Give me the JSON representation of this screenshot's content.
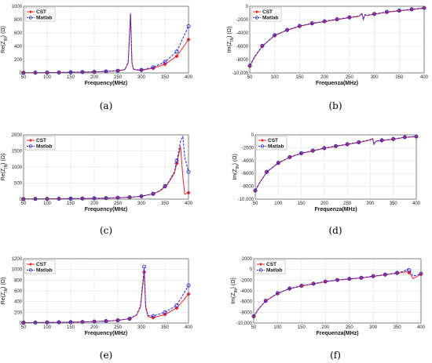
{
  "colors": {
    "cst": "#e8262a",
    "matlab": "#2b2bd8",
    "grid": "#dcdcdc",
    "axis": "#555555"
  },
  "chart_data": [
    {
      "id": "a",
      "type": "line",
      "panel_label": "(a)",
      "xlabel": "Frequency(MHz)",
      "ylabel": "Re(Z_IN) (Ω)",
      "xlim": [
        50,
        400
      ],
      "ylim": [
        0,
        1000
      ],
      "xticks": [
        50,
        100,
        150,
        200,
        250,
        300,
        350,
        400
      ],
      "xtick_labels": [
        "50",
        "100",
        "150",
        "200",
        "250",
        "300",
        "350",
        "400"
      ],
      "yticks": [
        0,
        200,
        400,
        600,
        800,
        1000
      ],
      "ytick_labels": [
        "0",
        "200",
        "400",
        "600",
        "800",
        "1000"
      ],
      "grid": true,
      "legend": "top-left",
      "series": [
        {
          "name": "CST",
          "style": "solid",
          "marker": "diamond",
          "x": [
            50,
            75,
            100,
            125,
            150,
            175,
            200,
            225,
            250,
            265,
            272,
            277,
            280,
            283,
            290,
            300,
            325,
            350,
            375,
            400
          ],
          "y": [
            3,
            4,
            5,
            7,
            9,
            12,
            16,
            22,
            32,
            50,
            150,
            900,
            150,
            55,
            45,
            40,
            70,
            130,
            250,
            500
          ],
          "marker_x": [
            50,
            75,
            100,
            125,
            150,
            175,
            200,
            225,
            250,
            300,
            325,
            350,
            375,
            400
          ]
        },
        {
          "name": "Matlab",
          "style": "dashed",
          "marker": "circle",
          "x": [
            50,
            75,
            100,
            125,
            150,
            175,
            200,
            225,
            250,
            265,
            272,
            277,
            280,
            283,
            290,
            300,
            325,
            350,
            375,
            400
          ],
          "y": [
            3,
            4,
            5,
            7,
            9,
            12,
            16,
            22,
            32,
            52,
            160,
            880,
            160,
            60,
            50,
            45,
            85,
            165,
            320,
            700
          ],
          "marker_x": [
            50,
            75,
            100,
            125,
            150,
            175,
            200,
            225,
            250,
            300,
            325,
            350,
            375,
            400
          ]
        }
      ]
    },
    {
      "id": "b",
      "type": "line",
      "panel_label": "(b)",
      "xlabel": "Frequenza(MHz)",
      "ylabel": "Im(Z_IN) (Ω)",
      "xlim": [
        50,
        400
      ],
      "ylim": [
        -10000,
        0
      ],
      "xticks": [
        50,
        100,
        150,
        200,
        250,
        300,
        350,
        400
      ],
      "xtick_labels": [
        "50",
        "100",
        "150",
        "200",
        "250",
        "300",
        "350",
        "400"
      ],
      "yticks": [
        -10000,
        -8000,
        -6000,
        -4000,
        -2000,
        0
      ],
      "ytick_labels": [
        "-10,000",
        "-8000",
        "-6000",
        "-4000",
        "-2000",
        "0"
      ],
      "grid": true,
      "legend": "top-left",
      "series": [
        {
          "name": "CST",
          "style": "solid",
          "marker": "diamond",
          "x": [
            50,
            60,
            75,
            100,
            125,
            150,
            175,
            200,
            225,
            250,
            270,
            275,
            278,
            281,
            285,
            300,
            325,
            350,
            375,
            400
          ],
          "y": [
            -9000,
            -7600,
            -6000,
            -4400,
            -3600,
            -3000,
            -2600,
            -2300,
            -2000,
            -1700,
            -1500,
            -1100,
            -2000,
            -1300,
            -1400,
            -1200,
            -900,
            -700,
            -500,
            -300
          ],
          "marker_x": [
            50,
            75,
            100,
            125,
            150,
            175,
            200,
            225,
            250,
            300,
            325,
            350,
            375,
            400
          ]
        },
        {
          "name": "Matlab",
          "style": "dashed",
          "marker": "circle",
          "x": [
            50,
            60,
            75,
            100,
            125,
            150,
            175,
            200,
            225,
            250,
            270,
            275,
            278,
            281,
            285,
            300,
            325,
            350,
            375,
            400
          ],
          "y": [
            -8900,
            -7500,
            -5950,
            -4350,
            -3550,
            -2950,
            -2550,
            -2250,
            -1950,
            -1650,
            -1450,
            -1050,
            -1950,
            -1250,
            -1350,
            -1150,
            -850,
            -650,
            -450,
            -250
          ],
          "marker_x": [
            50,
            75,
            100,
            125,
            150,
            175,
            200,
            225,
            250,
            300,
            325,
            350,
            375,
            400
          ]
        }
      ]
    },
    {
      "id": "c",
      "type": "line",
      "panel_label": "(c)",
      "xlabel": "Frequency(MHz)",
      "ylabel": "Re(Z_IN) (Ω)",
      "xlim": [
        50,
        400
      ],
      "ylim": [
        0,
        2000
      ],
      "xticks": [
        50,
        100,
        150,
        200,
        250,
        300,
        350,
        400
      ],
      "xtick_labels": [
        "50",
        "100",
        "150",
        "200",
        "250",
        "300",
        "350",
        "400"
      ],
      "yticks": [
        0,
        500,
        1000,
        1500,
        2000
      ],
      "ytick_labels": [
        "0",
        "500",
        "1000",
        "1500",
        "2000"
      ],
      "grid": true,
      "legend": "top-left",
      "series": [
        {
          "name": "CST",
          "style": "solid",
          "marker": "diamond",
          "x": [
            50,
            75,
            100,
            125,
            150,
            175,
            200,
            225,
            250,
            275,
            300,
            325,
            340,
            355,
            370,
            378,
            383,
            388,
            392,
            400
          ],
          "y": [
            5,
            7,
            9,
            12,
            16,
            20,
            25,
            32,
            42,
            58,
            90,
            160,
            260,
            450,
            800,
            1300,
            1650,
            700,
            150,
            200
          ],
          "marker_x": [
            50,
            75,
            100,
            125,
            150,
            175,
            200,
            225,
            250,
            275,
            300,
            325,
            350,
            375,
            400
          ]
        },
        {
          "name": "Matlab",
          "style": "dashed",
          "marker": "circle",
          "x": [
            50,
            75,
            100,
            125,
            150,
            175,
            200,
            225,
            250,
            275,
            300,
            325,
            340,
            355,
            370,
            378,
            383,
            388,
            392,
            400
          ],
          "y": [
            5,
            7,
            9,
            12,
            16,
            20,
            25,
            32,
            42,
            58,
            90,
            165,
            270,
            470,
            850,
            1400,
            1800,
            1950,
            1300,
            850
          ],
          "marker_x": [
            50,
            75,
            100,
            125,
            150,
            175,
            200,
            225,
            250,
            275,
            300,
            325,
            350,
            375,
            400
          ]
        }
      ]
    },
    {
      "id": "d",
      "type": "line",
      "panel_label": "(d)",
      "xlabel": "Frequenza(MHz)",
      "ylabel": "Im(Z_IN) (Ω)",
      "xlim": [
        50,
        400
      ],
      "ylim": [
        -10000,
        0
      ],
      "xticks": [
        50,
        100,
        150,
        200,
        250,
        300,
        350,
        400
      ],
      "xtick_labels": [
        "50",
        "100",
        "150",
        "200",
        "250",
        "300",
        "350",
        "400"
      ],
      "yticks": [
        -10000,
        -8000,
        -6000,
        -4000,
        -2000,
        0
      ],
      "ytick_labels": [
        "-10,000",
        "-8000",
        "-6000",
        "-4000",
        "-2000",
        "0"
      ],
      "grid": true,
      "legend": "top-left",
      "series": [
        {
          "name": "CST",
          "style": "solid",
          "marker": "diamond",
          "x": [
            50,
            60,
            75,
            100,
            125,
            150,
            175,
            200,
            225,
            250,
            275,
            300,
            305,
            308,
            312,
            325,
            350,
            375,
            400
          ],
          "y": [
            -8700,
            -7400,
            -5800,
            -4400,
            -3500,
            -2900,
            -2500,
            -2100,
            -1800,
            -1500,
            -1200,
            -800,
            -600,
            -1500,
            -1000,
            -900,
            -700,
            -400,
            -300
          ],
          "marker_x": [
            50,
            75,
            100,
            125,
            150,
            175,
            200,
            225,
            250,
            275,
            325,
            350,
            375,
            400
          ]
        },
        {
          "name": "Matlab",
          "style": "dashed",
          "marker": "circle",
          "x": [
            50,
            60,
            75,
            100,
            125,
            150,
            175,
            200,
            225,
            250,
            275,
            300,
            305,
            308,
            312,
            325,
            350,
            375,
            400
          ],
          "y": [
            -8650,
            -7350,
            -5750,
            -4350,
            -3450,
            -2850,
            -2450,
            -2050,
            -1750,
            -1450,
            -1150,
            -750,
            -550,
            -1450,
            -950,
            -850,
            -650,
            -350,
            -250
          ],
          "marker_x": [
            50,
            75,
            100,
            125,
            150,
            175,
            200,
            225,
            250,
            275,
            325,
            350,
            375,
            400
          ]
        }
      ]
    },
    {
      "id": "e",
      "type": "line",
      "panel_label": "(e)",
      "xlabel": "Frequency(MHz)",
      "ylabel": "Re(Z_IN) (Ω)",
      "xlim": [
        50,
        400
      ],
      "ylim": [
        0,
        1200
      ],
      "xticks": [
        50,
        100,
        150,
        200,
        250,
        300,
        350,
        400
      ],
      "xtick_labels": [
        "50",
        "100",
        "150",
        "200",
        "250",
        "300",
        "350",
        "400"
      ],
      "yticks": [
        0,
        200,
        400,
        600,
        800,
        1000,
        1200
      ],
      "ytick_labels": [
        "0",
        "200",
        "400",
        "600",
        "800",
        "1000",
        "1200"
      ],
      "grid": true,
      "legend": "top-left",
      "series": [
        {
          "name": "CST",
          "style": "solid",
          "marker": "diamond",
          "x": [
            50,
            75,
            100,
            125,
            150,
            175,
            200,
            225,
            250,
            275,
            290,
            298,
            303,
            306,
            309,
            314,
            325,
            350,
            375,
            400
          ],
          "y": [
            8,
            9,
            11,
            13,
            16,
            20,
            26,
            35,
            50,
            80,
            150,
            300,
            700,
            950,
            300,
            120,
            100,
            160,
            280,
            540
          ],
          "marker_x": [
            50,
            75,
            100,
            125,
            150,
            175,
            200,
            225,
            250,
            275,
            306,
            325,
            350,
            375,
            400
          ]
        },
        {
          "name": "Matlab",
          "style": "dashed",
          "marker": "circle",
          "x": [
            50,
            75,
            100,
            125,
            150,
            175,
            200,
            225,
            250,
            275,
            290,
            298,
            303,
            306,
            309,
            314,
            325,
            350,
            375,
            400
          ],
          "y": [
            8,
            9,
            11,
            13,
            16,
            20,
            26,
            35,
            50,
            80,
            155,
            320,
            750,
            1050,
            330,
            140,
            130,
            200,
            330,
            700
          ],
          "marker_x": [
            50,
            75,
            100,
            125,
            150,
            175,
            200,
            225,
            250,
            275,
            306,
            325,
            350,
            375,
            400
          ]
        }
      ]
    },
    {
      "id": "f",
      "type": "line",
      "panel_label": "(f)",
      "xlabel": "Frequenza(MHz)",
      "ylabel": "Im(Z_IN) (Ω)",
      "xlim": [
        50,
        400
      ],
      "ylim": [
        -10000,
        2000
      ],
      "xticks": [
        50,
        100,
        150,
        200,
        250,
        300,
        350,
        400
      ],
      "xtick_labels": [
        "50",
        "100",
        "150",
        "200",
        "250",
        "300",
        "350",
        "400"
      ],
      "yticks": [
        -10000,
        -8000,
        -6000,
        -4000,
        -2000,
        0,
        2000
      ],
      "ytick_labels": [
        "-10,000",
        "-8000",
        "-6000",
        "-4000",
        "-2000",
        "0",
        "2000"
      ],
      "grid": true,
      "legend": "top-left",
      "series": [
        {
          "name": "CST",
          "style": "solid",
          "marker": "diamond",
          "x": [
            50,
            60,
            75,
            100,
            125,
            150,
            175,
            200,
            225,
            250,
            275,
            300,
            325,
            350,
            365,
            372,
            378,
            383,
            390,
            400
          ],
          "y": [
            -8800,
            -7400,
            -5900,
            -4500,
            -3600,
            -3100,
            -2700,
            -2300,
            -2000,
            -1800,
            -1600,
            -1300,
            -1000,
            -700,
            -500,
            -300,
            -900,
            -1700,
            -1400,
            -900
          ],
          "marker_x": [
            50,
            75,
            100,
            125,
            150,
            175,
            200,
            225,
            250,
            275,
            300,
            325,
            350,
            375,
            400
          ]
        },
        {
          "name": "Matlab",
          "style": "dashed",
          "marker": "circle",
          "x": [
            50,
            60,
            75,
            100,
            125,
            150,
            175,
            200,
            225,
            250,
            275,
            300,
            325,
            350,
            365,
            372,
            378,
            383,
            390,
            400
          ],
          "y": [
            -8750,
            -7350,
            -5850,
            -4450,
            -3550,
            -3050,
            -2650,
            -2250,
            -1950,
            -1750,
            -1550,
            -1250,
            -950,
            -650,
            -300,
            100,
            -400,
            -1200,
            -1100,
            -800
          ],
          "marker_x": [
            50,
            75,
            100,
            125,
            150,
            175,
            200,
            225,
            250,
            275,
            300,
            325,
            350,
            375,
            400
          ]
        }
      ]
    }
  ]
}
